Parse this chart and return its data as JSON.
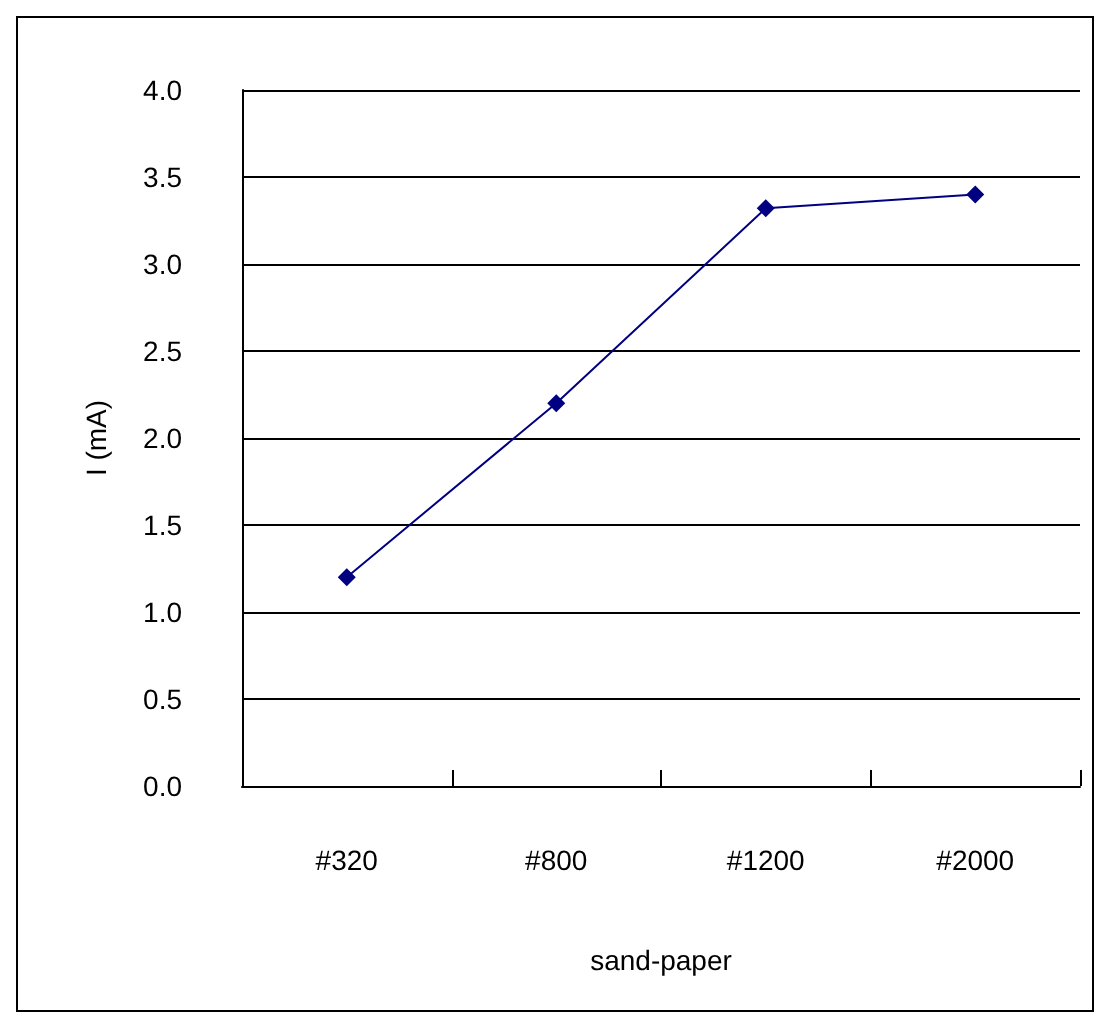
{
  "chart_data": {
    "type": "line",
    "xlabel": "sand-paper",
    "ylabel": "I (mA)",
    "categories": [
      "#320",
      "#800",
      "#1200",
      "#2000"
    ],
    "series": [
      {
        "color": "#000080",
        "values": [
          1.2,
          2.2,
          3.32,
          3.4
        ]
      }
    ],
    "ylim": [
      0,
      4
    ],
    "yticks": [
      {
        "value": 0,
        "label": "0.0"
      },
      {
        "value": 0.5,
        "label": "0.5"
      },
      {
        "value": 1,
        "label": "1.0"
      },
      {
        "value": 1.5,
        "label": "1.5"
      },
      {
        "value": 2,
        "label": "2.0"
      },
      {
        "value": 2.5,
        "label": "2.5"
      },
      {
        "value": 3,
        "label": "3.0"
      },
      {
        "value": 3.5,
        "label": "3.5"
      },
      {
        "value": 4,
        "label": "4.0"
      }
    ],
    "grid": "y",
    "marker": "diamond",
    "line_style": "solid"
  }
}
